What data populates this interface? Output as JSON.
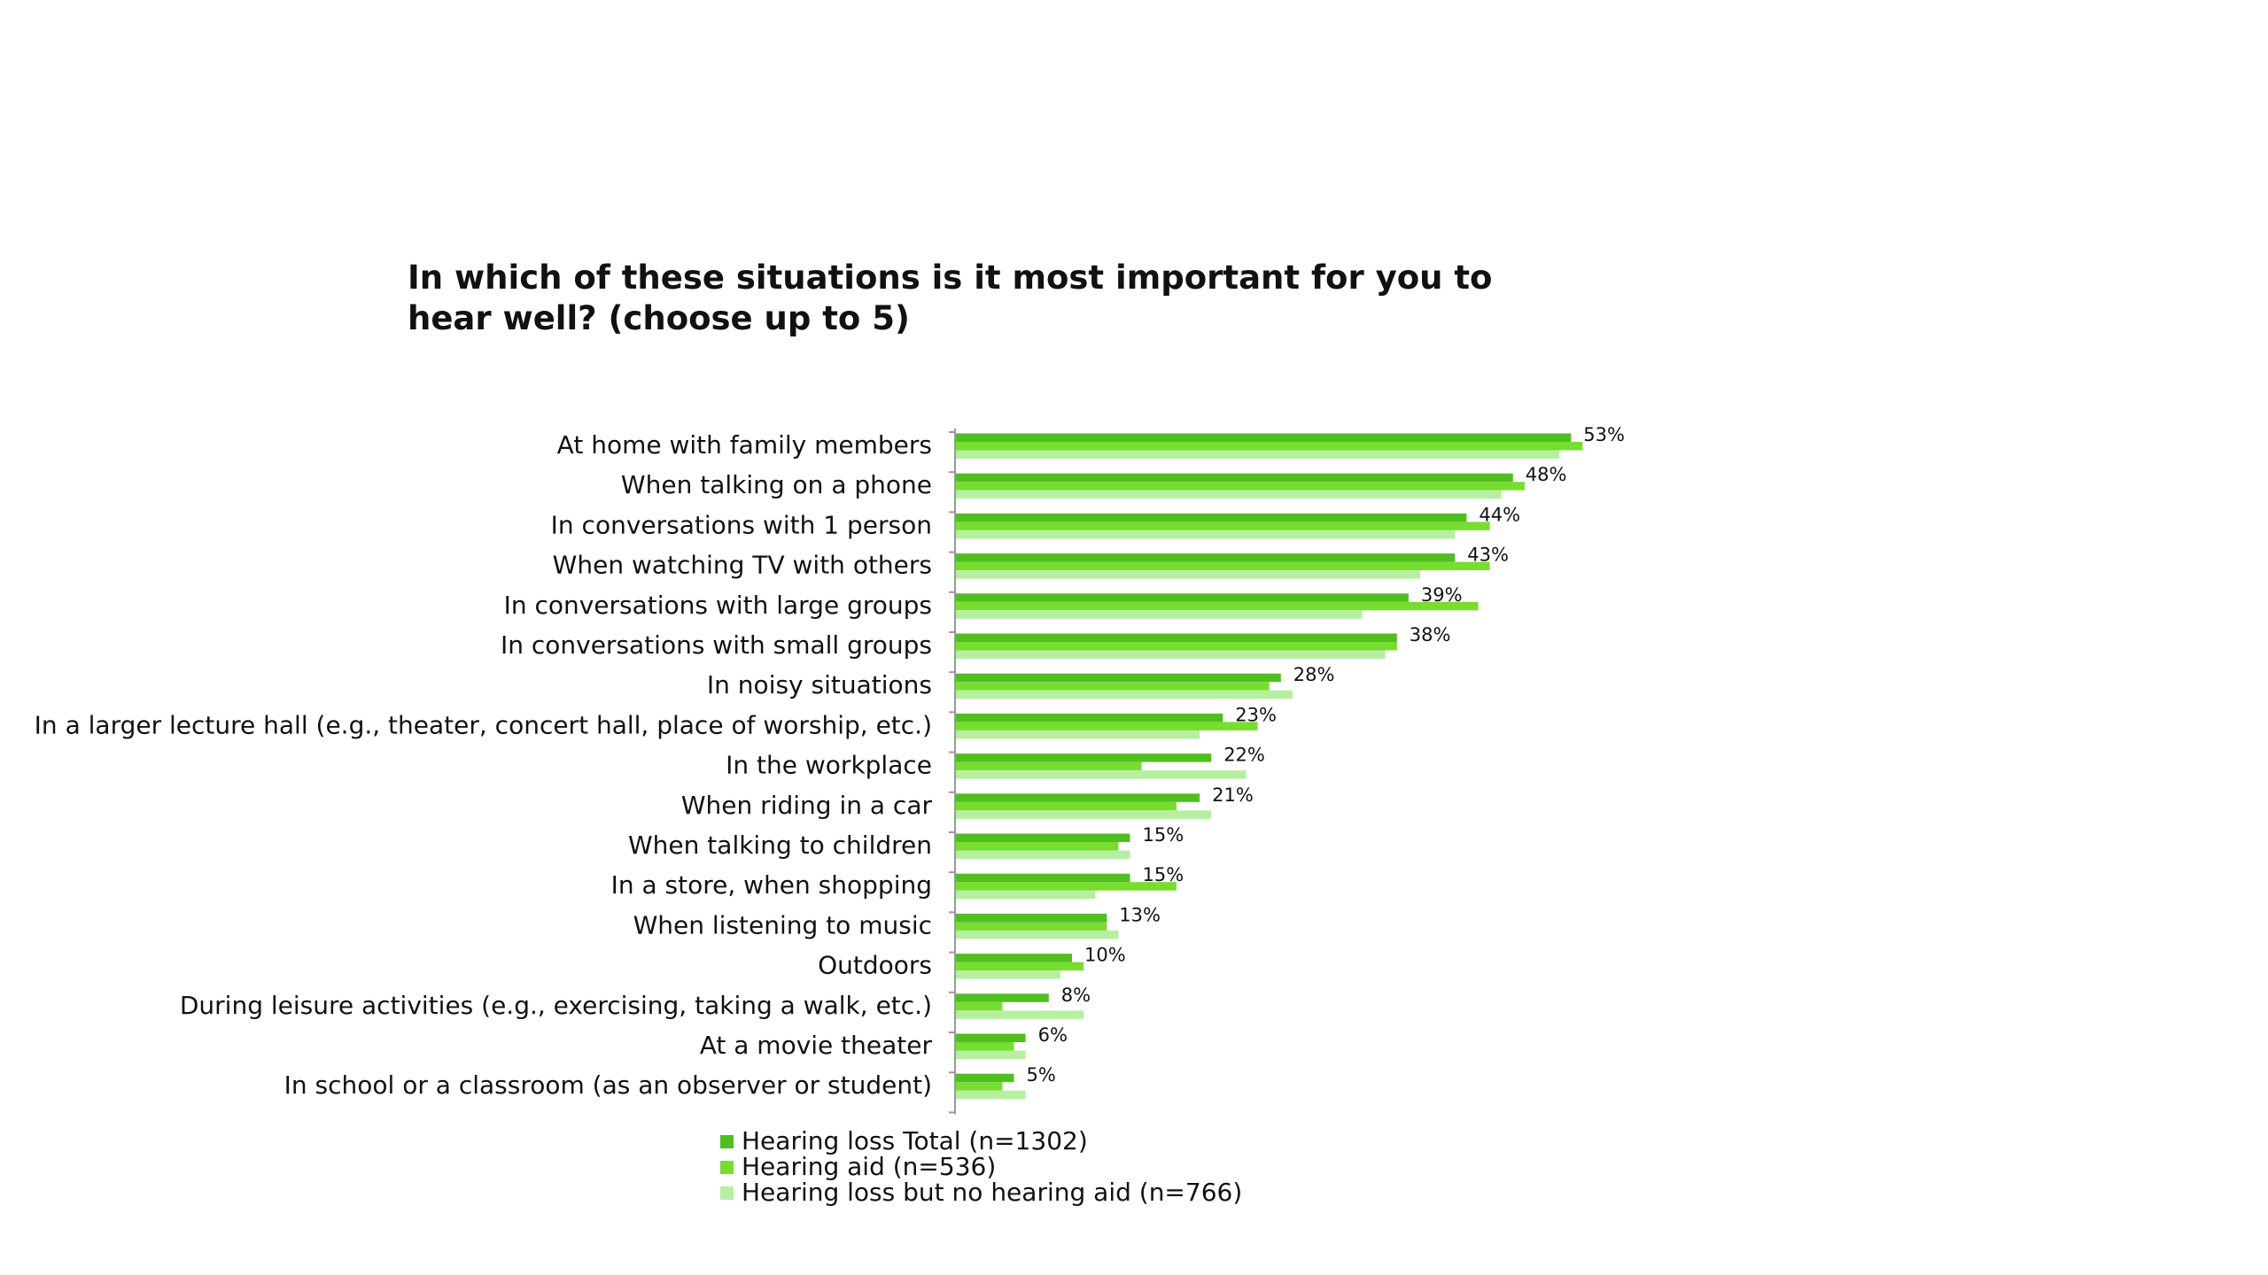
{
  "chart_data": {
    "type": "bar",
    "orientation": "horizontal",
    "title": "In which of these situations is it most important for you to hear well? (choose up to 5)",
    "title_lines": [
      "In which of these situations is it most important for you to",
      "hear well? (choose up to 5)"
    ],
    "xlim": [
      0,
      100
    ],
    "grid": false,
    "legend_position": "bottom",
    "categories": [
      "At home with family members",
      "When talking on a phone",
      "In conversations with 1 person",
      "When watching TV with others",
      "In conversations with large groups",
      "In conversations with small groups",
      "In noisy situations",
      "In a larger lecture hall (e.g., theater, concert hall, place of worship, etc.)",
      "In the workplace",
      "When riding in a car",
      "When talking to children",
      "In a store, when shopping",
      "When listening to music",
      "Outdoors",
      "During leisure activities (e.g., exercising, taking a walk, etc.)",
      "At a movie theater",
      "In school or a classroom (as an observer or student)"
    ],
    "data_labels": [
      "53%",
      "48%",
      "44%",
      "43%",
      "39%",
      "38%",
      "28%",
      "23%",
      "22%",
      "21%",
      "15%",
      "15%",
      "13%",
      "10%",
      "8%",
      "6%",
      "5%"
    ],
    "series": [
      {
        "name": "Hearing loss Total (n=1302)",
        "color": "#4fbf1f",
        "values": [
          53,
          48,
          44,
          43,
          39,
          38,
          28,
          23,
          22,
          21,
          15,
          15,
          13,
          10,
          8,
          6,
          5
        ]
      },
      {
        "name": "Hearing aid (n=536)",
        "color": "#77dd2e",
        "values": [
          54,
          49,
          46,
          46,
          45,
          38,
          27,
          26,
          16,
          19,
          14,
          19,
          13,
          11,
          4,
          5,
          4
        ]
      },
      {
        "name": "Hearing loss but no hearing aid (n=766)",
        "color": "#b5f0a0",
        "values": [
          52,
          47,
          43,
          40,
          35,
          37,
          29,
          21,
          25,
          22,
          15,
          12,
          14,
          9,
          11,
          6,
          6
        ]
      }
    ]
  }
}
